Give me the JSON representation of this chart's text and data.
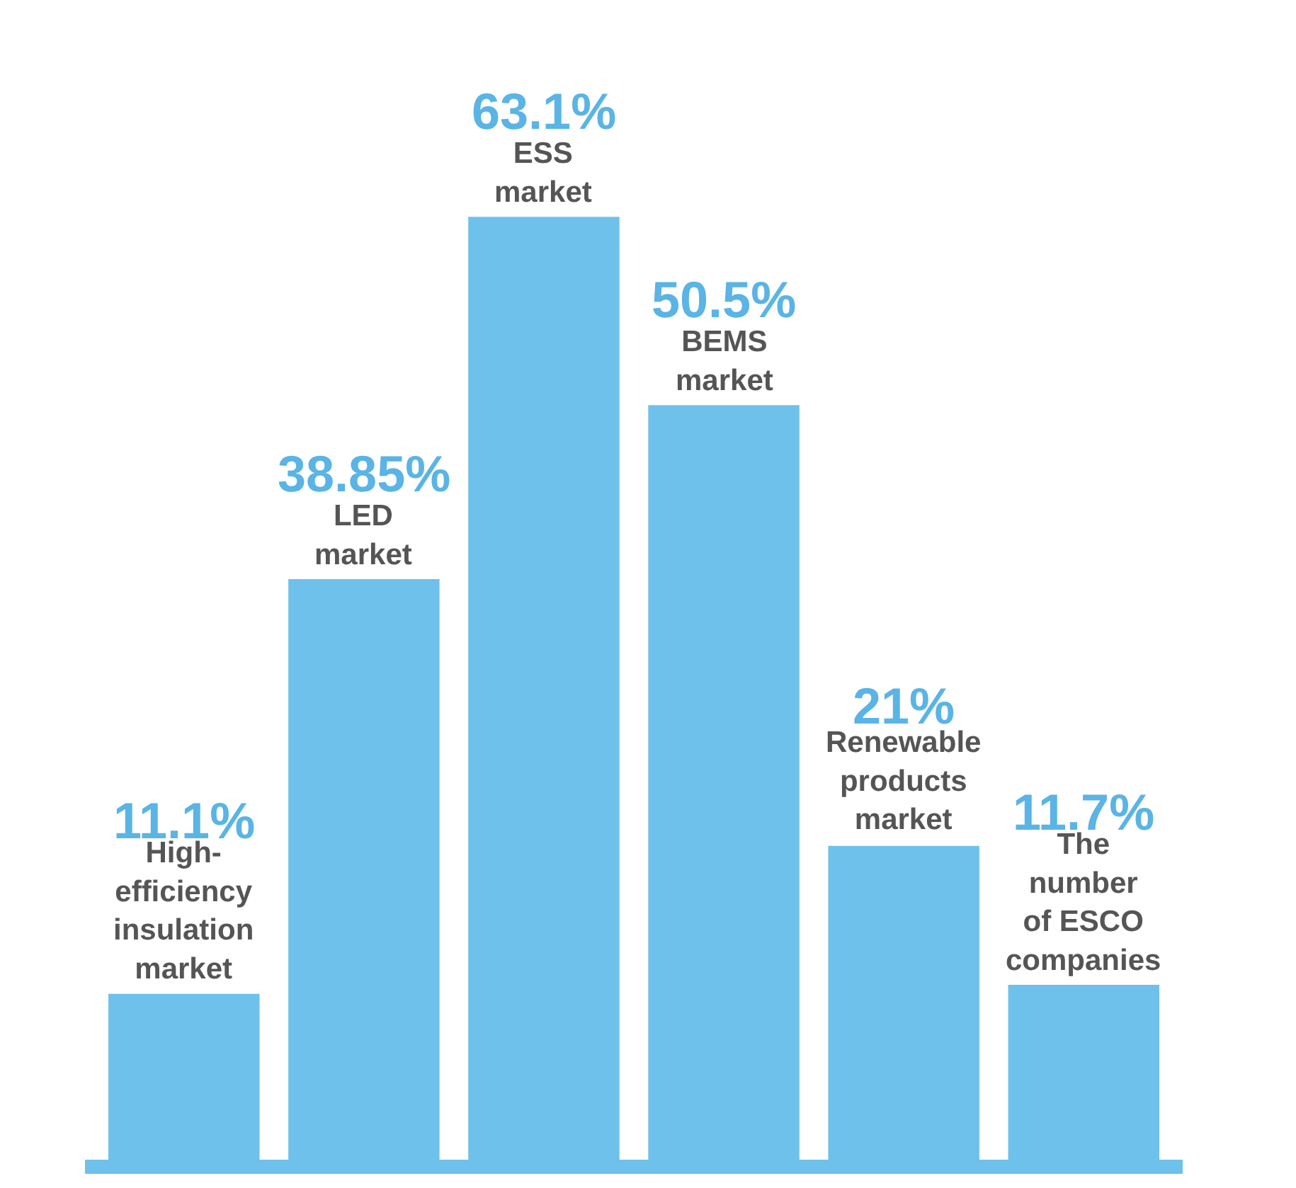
{
  "chart_data": {
    "type": "bar",
    "categories": [
      "High-\nefficiency\ninsulation\nmarket",
      "LED\nmarket",
      "ESS\nmarket",
      "BEMS\nmarket",
      "Renewable\nproducts\nmarket",
      "The\nnumber\nof ESCO\ncompanies"
    ],
    "values": [
      11.1,
      38.85,
      63.1,
      50.5,
      21,
      11.7
    ],
    "value_labels": [
      "11.1%",
      "38.85%",
      "63.1%",
      "50.5%",
      "21%",
      "11.7%"
    ],
    "color": "#6ec1ea",
    "grid": false,
    "legend": false,
    "tick_labels": false
  }
}
